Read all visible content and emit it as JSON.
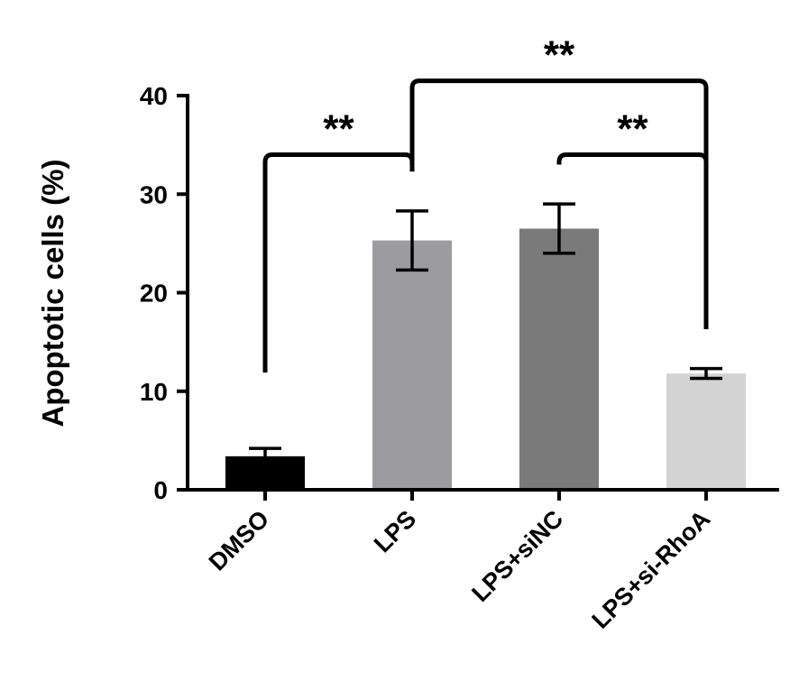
{
  "chart_data": {
    "type": "bar",
    "title": "",
    "xlabel": "",
    "ylabel": "Apoptotic cells (%)",
    "ylim": [
      0,
      40
    ],
    "yticks": [
      0,
      10,
      20,
      30,
      40
    ],
    "categories": [
      "DMSO",
      "LPS",
      "LPS+siNC",
      "LPS+si-RhoA"
    ],
    "values": [
      3.4,
      25.3,
      26.5,
      11.8
    ],
    "errors": [
      0.8,
      3.0,
      2.5,
      0.5
    ],
    "bar_colors": [
      "#000000",
      "#9b9ba0",
      "#7a7a7a",
      "#d3d3d3"
    ],
    "grid": false,
    "legend": "none",
    "significance": [
      {
        "from": 0,
        "to": 1,
        "label": "**",
        "level": 34
      },
      {
        "from": 1,
        "to": 3,
        "label": "**",
        "level": 41.5
      },
      {
        "from": 2,
        "to": 3,
        "label": "**",
        "level": 34
      }
    ]
  }
}
